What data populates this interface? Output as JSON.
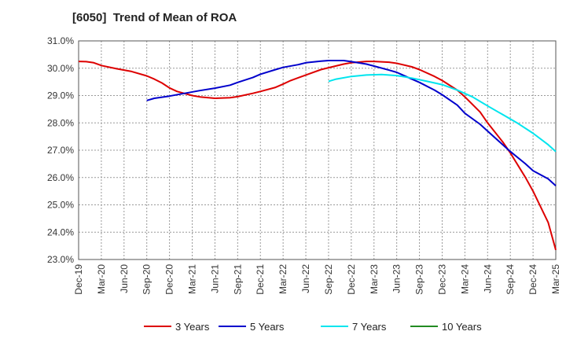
{
  "chart_data": {
    "type": "line",
    "title": "[6050]  Trend of Mean of ROA",
    "xlabel": "",
    "ylabel": "",
    "ylim": [
      23.0,
      31.0
    ],
    "yticks": [
      23.0,
      24.0,
      25.0,
      26.0,
      27.0,
      28.0,
      29.0,
      30.0,
      31.0
    ],
    "ytick_labels": [
      "23.0%",
      "24.0%",
      "25.0%",
      "26.0%",
      "27.0%",
      "28.0%",
      "29.0%",
      "30.0%",
      "31.0%"
    ],
    "x_start_month_index": 0,
    "x_end_month_index": 63,
    "xtick_labels": [
      "Dec-19",
      "Mar-20",
      "Jun-20",
      "Sep-20",
      "Dec-20",
      "Mar-21",
      "Jun-21",
      "Sep-21",
      "Dec-21",
      "Mar-22",
      "Jun-22",
      "Sep-22",
      "Dec-22",
      "Mar-23",
      "Jun-23",
      "Sep-23",
      "Dec-23",
      "Mar-24",
      "Jun-24",
      "Sep-24",
      "Dec-24",
      "Mar-25"
    ],
    "grid": true,
    "legend_position": "bottom",
    "series": [
      {
        "name": "3 Years",
        "color": "#dd0000",
        "points": [
          [
            0,
            30.25
          ],
          [
            1,
            30.24
          ],
          [
            2,
            30.2
          ],
          [
            3,
            30.1
          ],
          [
            5,
            29.98
          ],
          [
            7,
            29.88
          ],
          [
            9,
            29.72
          ],
          [
            10,
            29.6
          ],
          [
            11,
            29.46
          ],
          [
            12,
            29.28
          ],
          [
            13,
            29.15
          ],
          [
            15,
            29.0
          ],
          [
            16,
            28.95
          ],
          [
            18,
            28.9
          ],
          [
            20,
            28.92
          ],
          [
            21,
            28.96
          ],
          [
            23,
            29.08
          ],
          [
            24,
            29.15
          ],
          [
            26,
            29.3
          ],
          [
            27,
            29.42
          ],
          [
            28,
            29.55
          ],
          [
            30,
            29.75
          ],
          [
            32,
            29.95
          ],
          [
            33,
            30.02
          ],
          [
            35,
            30.15
          ],
          [
            36,
            30.2
          ],
          [
            38,
            30.25
          ],
          [
            39,
            30.25
          ],
          [
            41,
            30.22
          ],
          [
            42,
            30.18
          ],
          [
            44,
            30.05
          ],
          [
            45,
            29.95
          ],
          [
            47,
            29.7
          ],
          [
            48,
            29.55
          ],
          [
            50,
            29.2
          ],
          [
            51,
            28.95
          ],
          [
            53,
            28.4
          ],
          [
            54,
            28.0
          ],
          [
            56,
            27.3
          ],
          [
            57,
            26.9
          ],
          [
            59,
            26.0
          ],
          [
            60,
            25.5
          ],
          [
            62,
            24.35
          ],
          [
            63,
            23.35
          ]
        ]
      },
      {
        "name": "5 Years",
        "color": "#0000cc",
        "points": [
          [
            9,
            28.82
          ],
          [
            10,
            28.9
          ],
          [
            12,
            28.98
          ],
          [
            14,
            29.08
          ],
          [
            16,
            29.18
          ],
          [
            18,
            29.27
          ],
          [
            20,
            29.38
          ],
          [
            21,
            29.48
          ],
          [
            23,
            29.66
          ],
          [
            24,
            29.78
          ],
          [
            26,
            29.95
          ],
          [
            27,
            30.03
          ],
          [
            29,
            30.13
          ],
          [
            30,
            30.2
          ],
          [
            32,
            30.26
          ],
          [
            33,
            30.28
          ],
          [
            35,
            30.28
          ],
          [
            36,
            30.24
          ],
          [
            38,
            30.15
          ],
          [
            39,
            30.08
          ],
          [
            41,
            29.93
          ],
          [
            42,
            29.85
          ],
          [
            44,
            29.6
          ],
          [
            45,
            29.48
          ],
          [
            47,
            29.2
          ],
          [
            48,
            29.03
          ],
          [
            50,
            28.65
          ],
          [
            51,
            28.35
          ],
          [
            53,
            27.95
          ],
          [
            54,
            27.7
          ],
          [
            56,
            27.2
          ],
          [
            57,
            26.95
          ],
          [
            59,
            26.5
          ],
          [
            60,
            26.25
          ],
          [
            62,
            25.95
          ],
          [
            63,
            25.7
          ]
        ]
      },
      {
        "name": "7 Years",
        "color": "#00e5ee",
        "points": [
          [
            33,
            29.52
          ],
          [
            34,
            29.6
          ],
          [
            36,
            29.7
          ],
          [
            38,
            29.75
          ],
          [
            40,
            29.77
          ],
          [
            42,
            29.73
          ],
          [
            44,
            29.64
          ],
          [
            46,
            29.52
          ],
          [
            48,
            29.4
          ],
          [
            50,
            29.2
          ],
          [
            52,
            28.95
          ],
          [
            54,
            28.62
          ],
          [
            56,
            28.3
          ],
          [
            58,
            27.98
          ],
          [
            60,
            27.62
          ],
          [
            62,
            27.2
          ],
          [
            63,
            26.95
          ]
        ]
      },
      {
        "name": "10 Years",
        "color": "#228b22",
        "points": []
      }
    ]
  }
}
